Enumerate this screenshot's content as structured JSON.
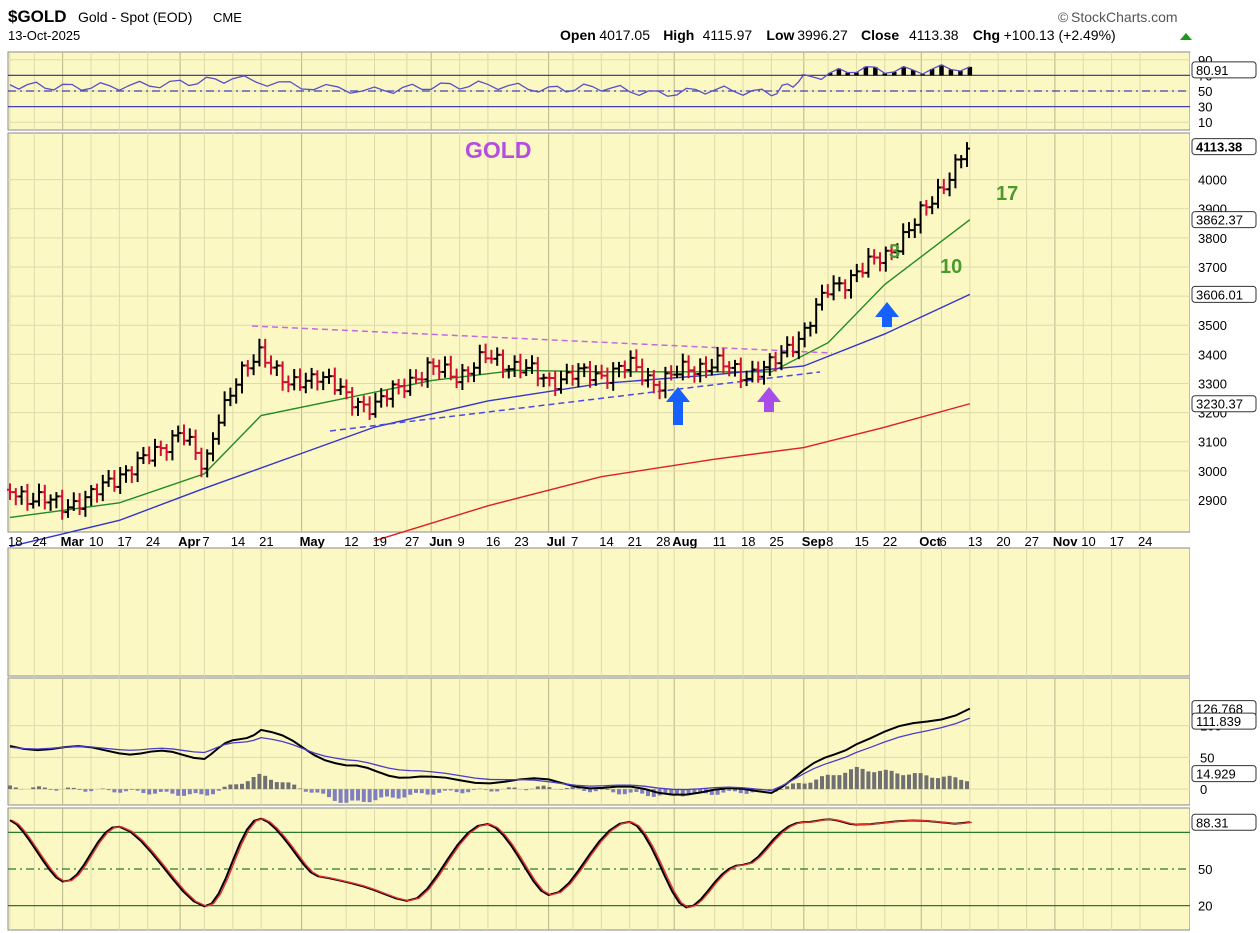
{
  "header": {
    "symbol": "$GOLD",
    "name": "Gold - Spot (EOD)",
    "exchange": "CME",
    "date": "13-Oct-2025",
    "brand": "StockCharts.com",
    "ohlc": [
      {
        "label": "Open",
        "value": "4017.05"
      },
      {
        "label": "High",
        "value": "4115.97"
      },
      {
        "label": "Low",
        "value": "3996.27"
      },
      {
        "label": "Close",
        "value": "4113.38"
      },
      {
        "label": "Chg",
        "value": "+100.13 (+2.49%)"
      }
    ]
  },
  "colors": {
    "panel_bg": "#fbf8c4",
    "grid": "#dedbab",
    "up_bar": "#000000",
    "down_bar": "#d01033",
    "ma_short": "#228b22",
    "ma_mid": "#3535c8",
    "ma_long": "#e02020",
    "rsi_line": "#5a4fc8",
    "trend_purple": "#c46ae0",
    "trend_blue": "#4a4ae6",
    "title_purple": "#b44ee0",
    "green_text": "#4a9a30",
    "arrow_blue": "#1560ff",
    "arrow_purple": "#a84ee8"
  },
  "chart_data": [
    {
      "type": "line",
      "panel": "rsi",
      "axis_ticks": [
        "90",
        "70",
        "50",
        "30",
        "10"
      ],
      "ylim": [
        0,
        100
      ],
      "reference_lines": [
        70,
        50,
        30
      ],
      "value_label": "80.91",
      "x": [
        "Feb 18",
        "Mar 3",
        "Mar 17",
        "Apr 1",
        "Apr 14",
        "May 1",
        "May 19",
        "Jun 2",
        "Jun 16",
        "Jul 1",
        "Jul 14",
        "Jul 28",
        "Aug 11",
        "Aug 25",
        "Sep 2",
        "Sep 15",
        "Sep 29",
        "Oct 13"
      ],
      "values": [
        58,
        55,
        56,
        60,
        66,
        56,
        50,
        56,
        58,
        52,
        55,
        46,
        52,
        47,
        66,
        78,
        76,
        81
      ]
    },
    {
      "type": "line",
      "panel": "price",
      "title": "GOLD",
      "axis_ticks": [
        "4000",
        "3900",
        "3800",
        "3700",
        "3600",
        "3500",
        "3400",
        "3300",
        "3200",
        "3100",
        "3000",
        "2900"
      ],
      "ylim": [
        2790,
        4160
      ],
      "x_ticks": [
        "18",
        "24",
        "Mar",
        "10",
        "17",
        "24",
        "Apr",
        "7",
        "14",
        "21",
        "May",
        "12",
        "19",
        "27",
        "Jun",
        "9",
        "16",
        "23",
        "Jul",
        "7",
        "14",
        "21",
        "28",
        "Aug",
        "11",
        "18",
        "25",
        "Sep",
        "8",
        "15",
        "22",
        "Oct",
        "6",
        "13",
        "20",
        "27",
        "Nov",
        "10",
        "17",
        "24"
      ],
      "series": [
        {
          "x": [
            "Feb 18",
            "Feb 24",
            "Mar 3",
            "Mar 10",
            "Mar 17",
            "Mar 24",
            "Apr 1",
            "Apr 7",
            "Apr 10",
            "Apr 14",
            "Apr 21",
            "Apr 28",
            "May 5",
            "May 12",
            "May 19",
            "May 27",
            "Jun 2",
            "Jun 9",
            "Jun 16",
            "Jun 23",
            "Jul 1",
            "Jul 7",
            "Jul 14",
            "Jul 21",
            "Jul 28",
            "Aug 4",
            "Aug 11",
            "Aug 18",
            "Aug 25",
            "Sep 2",
            "Sep 8",
            "Sep 15",
            "Sep 22",
            "Sep 29",
            "Oct 6",
            "Oct 13"
          ],
          "values": [
            2935,
            2905,
            2880,
            2910,
            2990,
            3040,
            3140,
            3000,
            3180,
            3280,
            3420,
            3280,
            3340,
            3250,
            3220,
            3310,
            3350,
            3330,
            3390,
            3360,
            3310,
            3330,
            3330,
            3360,
            3300,
            3350,
            3370,
            3330,
            3360,
            3480,
            3620,
            3680,
            3740,
            3840,
            3980,
            4113.38
          ]
        },
        {
          "value_label": "3862.37",
          "x": [
            "Feb 18",
            "Mar 17",
            "Apr 7",
            "Apr 21",
            "May 12",
            "Jun 2",
            "Jun 23",
            "Jul 14",
            "Aug 4",
            "Aug 25",
            "Sep 8",
            "Sep 22",
            "Oct 13"
          ],
          "values": [
            2840,
            2890,
            2990,
            3190,
            3250,
            3310,
            3345,
            3340,
            3340,
            3340,
            3440,
            3640,
            3862.37
          ]
        },
        {
          "value_label": "3606.01",
          "x": [
            "Feb 18",
            "Mar 17",
            "Apr 7",
            "May 1",
            "May 19",
            "Jun 16",
            "Jul 14",
            "Aug 11",
            "Sep 2",
            "Sep 22",
            "Oct 13"
          ],
          "values": [
            2740,
            2830,
            2940,
            3060,
            3150,
            3240,
            3300,
            3330,
            3360,
            3470,
            3606.01
          ]
        },
        {
          "value_label": "3230.37",
          "x": [
            "May 19",
            "Jun 16",
            "Jul 14",
            "Aug 11",
            "Sep 2",
            "Sep 22",
            "Oct 13"
          ],
          "values": [
            2760,
            2880,
            2980,
            3040,
            3080,
            3150,
            3230.37
          ]
        }
      ],
      "value_label": "4113.38",
      "annotations": [
        "3",
        "10",
        "17"
      ]
    },
    {
      "type": "line",
      "panel": "momentum",
      "axis_ticks": [
        "100",
        "50",
        "0"
      ],
      "ylim": [
        -25,
        175
      ],
      "value_labels": [
        "126.768",
        "111.839",
        "14.929"
      ],
      "x": [
        "Feb 18",
        "Mar 17",
        "Apr 7",
        "Apr 21",
        "May 12",
        "Jun 2",
        "Jul 1",
        "Jul 28",
        "Aug 25",
        "Sep 15",
        "Oct 13"
      ],
      "series": [
        {
          "values": [
            68,
            60,
            52,
            95,
            35,
            15,
            12,
            -5,
            -2,
            75,
            126.768
          ]
        },
        {
          "values": [
            66,
            64,
            60,
            82,
            45,
            25,
            10,
            2,
            0,
            60,
            111.839
          ]
        },
        {
          "values": [
            3,
            -3,
            -10,
            22,
            -22,
            -6,
            3,
            -10,
            -3,
            32,
            14.929
          ]
        }
      ]
    },
    {
      "type": "line",
      "panel": "stochastic",
      "axis_ticks": [
        "50",
        "20"
      ],
      "ylim": [
        0,
        100
      ],
      "reference_lines": [
        80,
        50,
        20
      ],
      "value_label": "88.31",
      "x": [
        "Feb 18",
        "Mar 3",
        "Mar 17",
        "Apr 7",
        "Apr 21",
        "May 5",
        "May 27",
        "Jun 16",
        "Jul 1",
        "Jul 21",
        "Aug 4",
        "Aug 18",
        "Sep 2",
        "Sep 15",
        "Oct 13"
      ],
      "values": [
        90,
        40,
        85,
        20,
        92,
        45,
        25,
        88,
        30,
        90,
        20,
        55,
        90,
        88,
        88.31
      ]
    }
  ]
}
